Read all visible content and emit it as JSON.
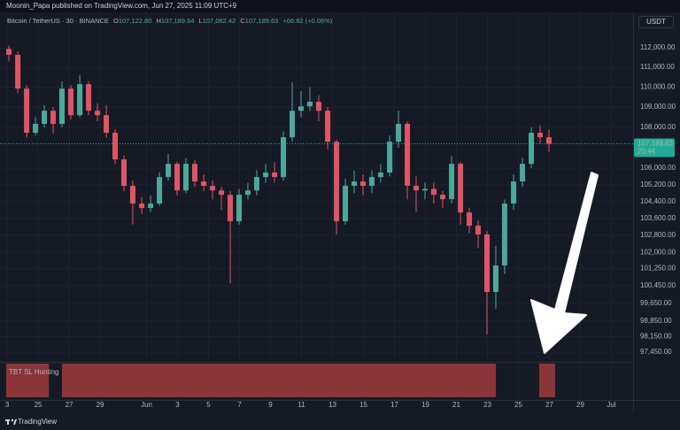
{
  "header": {
    "publisher": "Moonin_Papa published on TradingView.com, Jun 27, 2025 11:09 UTC+9",
    "symbol": "Bitcoin / TetherUS · 30 · BINANCE",
    "ohlc": [
      {
        "label": "O",
        "value": "107,122.80"
      },
      {
        "label": "H",
        "value": "107,189.64"
      },
      {
        "label": "L",
        "value": "107,062.42"
      },
      {
        "label": "C",
        "value": "107,189.63"
      }
    ],
    "change": "+66.82 (+0.06%)",
    "currency": "USDT"
  },
  "footer": {
    "brand": "TradingView"
  },
  "chart_data": {
    "type": "candlestick",
    "log_scale": true,
    "grid": true,
    "up_color": "#4da89a",
    "down_color": "#e05565",
    "xlim": [
      -0.46,
      40.4
    ],
    "ylim": [
      97060,
      113640
    ],
    "xticks": [
      {
        "value": 0,
        "label": "3"
      },
      {
        "value": 2,
        "label": "25"
      },
      {
        "value": 4,
        "label": "27"
      },
      {
        "value": 6,
        "label": "29"
      },
      {
        "value": 9,
        "label": "Jun"
      },
      {
        "value": 11,
        "label": "3"
      },
      {
        "value": 13,
        "label": "5"
      },
      {
        "value": 15,
        "label": "7"
      },
      {
        "value": 17,
        "label": "9"
      },
      {
        "value": 19,
        "label": "11"
      },
      {
        "value": 21,
        "label": "13"
      },
      {
        "value": 23,
        "label": "15"
      },
      {
        "value": 25,
        "label": "17"
      },
      {
        "value": 27,
        "label": "19"
      },
      {
        "value": 29,
        "label": "21"
      },
      {
        "value": 31,
        "label": "23"
      },
      {
        "value": 33,
        "label": "25"
      },
      {
        "value": 35,
        "label": "27"
      },
      {
        "value": 37,
        "label": "29"
      },
      {
        "value": 39,
        "label": "Jul"
      }
    ],
    "yticks": [
      {
        "value": 112000,
        "label": "112,000.00"
      },
      {
        "value": 111000,
        "label": "111,000.00"
      },
      {
        "value": 110000,
        "label": "110,000.00"
      },
      {
        "value": 109000,
        "label": "109,000.00"
      },
      {
        "value": 108000,
        "label": "108,000.00"
      },
      {
        "value": 106000,
        "label": "106,000.00"
      },
      {
        "value": 105200,
        "label": "105,200.00"
      },
      {
        "value": 104400,
        "label": "104,400.00"
      },
      {
        "value": 103600,
        "label": "103,600.00"
      },
      {
        "value": 102800,
        "label": "102,800.00"
      },
      {
        "value": 102000,
        "label": "102,000.00"
      },
      {
        "value": 101250,
        "label": "101,250.00"
      },
      {
        "value": 100450,
        "label": "100,450.00"
      },
      {
        "value": 99650,
        "label": "99,650.00"
      },
      {
        "value": 98850,
        "label": "98,850.00"
      },
      {
        "value": 98150,
        "label": "98,150.00"
      },
      {
        "value": 97450,
        "label": "97,450.00"
      }
    ],
    "last_price": {
      "value": 107189.63,
      "label": "107,189.63",
      "countdown": "20:44",
      "color": "#22ab94"
    },
    "x": [
      0.11,
      0.69,
      1.26,
      1.83,
      2.4,
      2.97,
      3.54,
      4.11,
      4.69,
      5.26,
      5.83,
      6.4,
      6.97,
      7.54,
      8.11,
      8.69,
      9.26,
      9.83,
      10.4,
      10.97,
      11.54,
      12.11,
      12.69,
      13.26,
      13.83,
      14.4,
      14.97,
      15.54,
      16.11,
      16.69,
      17.26,
      17.83,
      18.4,
      18.97,
      19.54,
      20.11,
      20.69,
      21.26,
      21.83,
      22.4,
      22.97,
      23.54,
      24.11,
      24.69,
      25.26,
      25.83,
      26.4,
      26.97,
      27.54,
      28.11,
      28.69,
      29.26,
      29.83,
      30.4,
      30.97,
      31.54,
      32.11,
      32.69,
      33.26,
      33.83,
      34.4,
      34.97
    ],
    "open": [
      111940,
      111640,
      109930,
      107730,
      108170,
      108820,
      108170,
      109930,
      108600,
      110150,
      108820,
      108600,
      107730,
      106430,
      105150,
      104300,
      104090,
      104300,
      105570,
      106210,
      104930,
      106210,
      105360,
      105150,
      104930,
      104720,
      103460,
      104720,
      104930,
      105570,
      105790,
      105570,
      107510,
      108820,
      109040,
      109270,
      108820,
      107290,
      103460,
      105150,
      105360,
      105150,
      105570,
      105790,
      107290,
      108170,
      105150,
      104930,
      105000,
      104720,
      104510,
      106210,
      103880,
      103250,
      102840,
      100170,
      101390,
      104300,
      105360,
      106210,
      107730,
      107510
    ],
    "high": [
      112100,
      111800,
      110100,
      108500,
      109100,
      109000,
      110300,
      110100,
      110600,
      110300,
      109200,
      109100,
      107900,
      106600,
      105400,
      104600,
      104700,
      105800,
      106700,
      106300,
      106500,
      106400,
      105700,
      105400,
      105100,
      104900,
      105000,
      105300,
      105900,
      106200,
      106300,
      107800,
      110250,
      109800,
      110000,
      109600,
      109000,
      107400,
      105500,
      105900,
      105700,
      105900,
      106200,
      107600,
      108820,
      108300,
      105600,
      105300,
      105300,
      104900,
      106600,
      106300,
      104100,
      103500,
      103000,
      102300,
      104500,
      105700,
      106500,
      108000,
      108100,
      107900
    ],
    "low": [
      111300,
      109700,
      107500,
      107600,
      108000,
      107700,
      108000,
      108400,
      108500,
      108600,
      108300,
      107500,
      106200,
      104900,
      103300,
      103800,
      103900,
      104200,
      105400,
      104700,
      104800,
      105100,
      104900,
      104500,
      104000,
      100570,
      103300,
      104500,
      104700,
      105300,
      105300,
      105400,
      107300,
      108500,
      108800,
      108300,
      106900,
      102840,
      103300,
      104800,
      104700,
      104800,
      105300,
      105600,
      107000,
      104500,
      103900,
      104500,
      104300,
      104100,
      104300,
      103300,
      102900,
      102200,
      98240,
      99400,
      101000,
      104000,
      105100,
      106000,
      107200,
      106800
    ],
    "close": [
      111640,
      109930,
      107730,
      108170,
      108820,
      108170,
      109930,
      108600,
      110150,
      108820,
      108600,
      107730,
      106430,
      105150,
      104300,
      104090,
      104300,
      105570,
      106210,
      104930,
      106210,
      105360,
      105150,
      104930,
      104720,
      103460,
      104720,
      104930,
      105570,
      105790,
      105570,
      107510,
      108820,
      109040,
      109270,
      108820,
      107290,
      103460,
      105150,
      105360,
      105150,
      105570,
      105790,
      107290,
      108170,
      105150,
      104930,
      105000,
      104720,
      104510,
      106210,
      103880,
      103250,
      102840,
      100170,
      101390,
      104300,
      105360,
      106210,
      107730,
      107510,
      107189.63
    ],
    "indicator": {
      "name": "TBT SL Hunting",
      "color": "#8b3538",
      "ranges": [
        [
          -0.06,
          2.69
        ],
        [
          3.54,
          31.54
        ],
        [
          34.34,
          35.37
        ]
      ]
    }
  }
}
